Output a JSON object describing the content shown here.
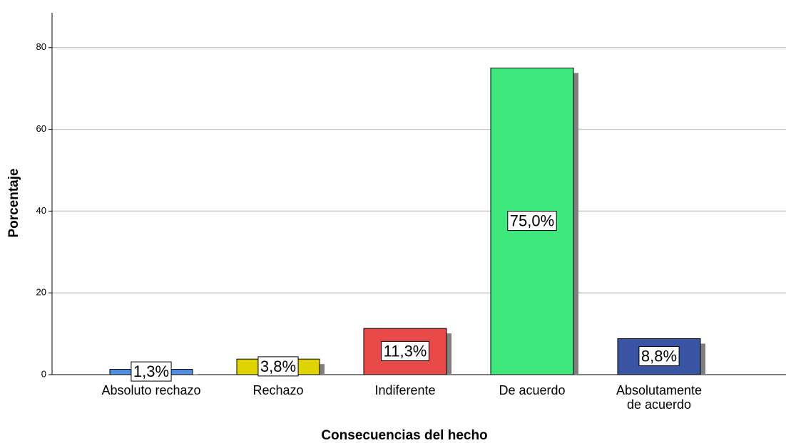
{
  "chart_data": {
    "type": "bar",
    "xlabel": "Consecuencias del hecho",
    "ylabel": "Porcentaje",
    "categories": [
      "Absoluto rechazo",
      "Rechazo",
      "Indiferente",
      "De acuerdo",
      "Absolutamente de acuerdo"
    ],
    "values": [
      1.3,
      3.8,
      11.3,
      75.0,
      8.8
    ],
    "value_labels": [
      "1,3%",
      "3,8%",
      "11,3%",
      "75,0%",
      "8,8%"
    ],
    "colors": [
      "#4f8fe6",
      "#e0d400",
      "#e84a4a",
      "#3fe87d",
      "#3a54a4"
    ],
    "ylim": [
      0,
      88.5
    ],
    "yticks": [
      0,
      20,
      40,
      60,
      80
    ],
    "grid": true
  }
}
